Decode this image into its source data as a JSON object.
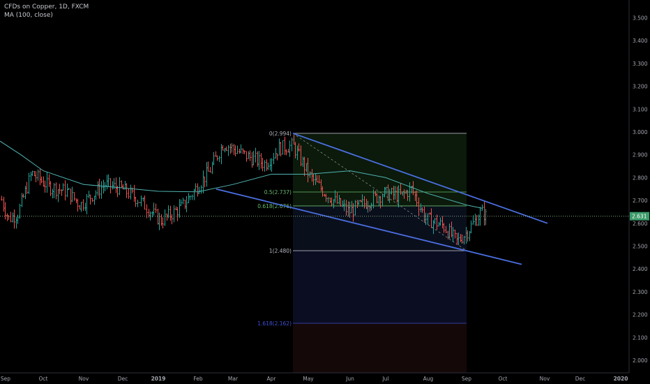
{
  "legend": {
    "symbol": "CFDs on Copper, 1D, FXCM",
    "indicator": "MA (100, close)"
  },
  "colors": {
    "background": "#000000",
    "up_bar": "#26a69a",
    "down_bar": "#ef5350",
    "ma_line": "#4fb3b0",
    "channel": "#4a6fe0",
    "price_line": "#8fbf8f",
    "price_tag": "#3d9b6a"
  },
  "chart_data": {
    "type": "ohlc",
    "y_ticks": [
      "2.000",
      "2.100",
      "2.200",
      "2.300",
      "2.400",
      "2.500",
      "2.600",
      "2.700",
      "2.800",
      "2.900",
      "3.000",
      "3.100",
      "3.200",
      "3.300",
      "3.400",
      "3.500"
    ],
    "x_ticks": [
      "Sep",
      "Oct",
      "Nov",
      "Dec",
      "2019",
      "Feb",
      "Mar",
      "Apr",
      "May",
      "Jun",
      "Jul",
      "Aug",
      "Sep",
      "Oct",
      "Nov",
      "Dec",
      "2020"
    ],
    "ylim": [
      1.97,
      3.54
    ],
    "last_price": "2.631",
    "series": [
      {
        "name": "MA (100, close)",
        "type": "line",
        "points": [
          [
            "Sep",
            2.96
          ],
          [
            "Oct",
            2.83
          ],
          [
            "Nov",
            2.77
          ],
          [
            "Dec",
            2.76
          ],
          [
            "2019",
            2.74
          ],
          [
            "Feb",
            2.74
          ],
          [
            "Mar",
            2.77
          ],
          [
            "Apr",
            2.82
          ],
          [
            "May",
            2.81
          ],
          [
            "Jun",
            2.83
          ],
          [
            "Jul",
            2.79
          ],
          [
            "Aug",
            2.72
          ],
          [
            "Sep",
            2.67
          ]
        ]
      }
    ],
    "fibonacci": {
      "levels": [
        {
          "label": "0(2.994)",
          "value": 2.994,
          "color": "#b2b5be"
        },
        {
          "label": "0.5(2.737)",
          "value": 2.737,
          "color": "#66bb6a"
        },
        {
          "label": "0.618(2.676)",
          "value": 2.676,
          "color": "#66bb6a"
        },
        {
          "label": "1(2.480)",
          "value": 2.48,
          "color": "#b2b5be"
        },
        {
          "label": "1.618(2.162)",
          "value": 2.162,
          "color": "#3f51d6"
        }
      ]
    },
    "channel": {
      "upper": [
        [
          "Apr",
          2.994
        ],
        [
          "Nov",
          2.6
        ]
      ],
      "lower": [
        [
          "Feb",
          2.75
        ],
        [
          "Oct",
          2.42
        ]
      ]
    }
  }
}
